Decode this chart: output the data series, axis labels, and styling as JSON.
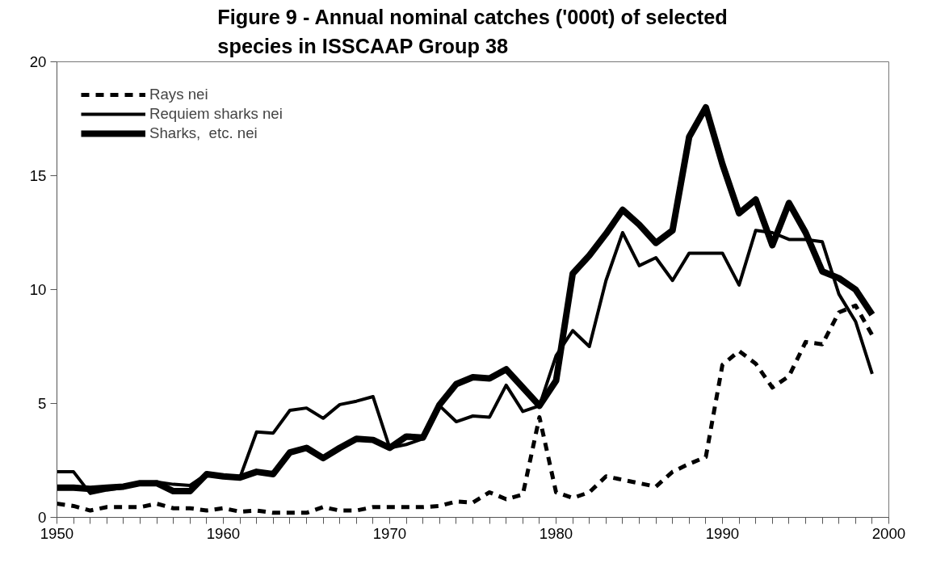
{
  "chart_data": {
    "type": "line",
    "title": "Figure 9 - Annual nominal catches ('000t) of selected species in ISSCAAP Group 38",
    "x": [
      1950,
      1951,
      1952,
      1953,
      1954,
      1955,
      1956,
      1957,
      1958,
      1959,
      1960,
      1961,
      1962,
      1963,
      1964,
      1965,
      1966,
      1967,
      1968,
      1969,
      1970,
      1971,
      1972,
      1973,
      1974,
      1975,
      1976,
      1977,
      1978,
      1979,
      1980,
      1981,
      1982,
      1983,
      1984,
      1985,
      1986,
      1987,
      1988,
      1989,
      1990,
      1991,
      1992,
      1993,
      1994,
      1995,
      1996,
      1997,
      1998,
      1999
    ],
    "series": [
      {
        "name": "Rays nei",
        "color": "#000000",
        "line_style": "dashed",
        "values": [
          0.6,
          0.5,
          0.3,
          0.45,
          0.45,
          0.45,
          0.6,
          0.4,
          0.4,
          0.3,
          0.4,
          0.25,
          0.3,
          0.2,
          0.2,
          0.2,
          0.45,
          0.3,
          0.3,
          0.45,
          0.45,
          0.45,
          0.45,
          0.5,
          0.7,
          0.65,
          1.1,
          0.8,
          1.0,
          4.4,
          1.1,
          0.85,
          1.1,
          1.8,
          1.65,
          1.5,
          1.35,
          2.0,
          2.35,
          2.65,
          6.7,
          7.3,
          6.75,
          5.7,
          6.2,
          7.7,
          7.6,
          9.0,
          9.3,
          8.0
        ]
      },
      {
        "name": "Requiem sharks nei",
        "color": "#000000",
        "line_style": "solid",
        "values": [
          2.0,
          2.0,
          1.05,
          1.2,
          1.3,
          1.5,
          1.55,
          1.45,
          1.4,
          1.9,
          1.8,
          1.75,
          3.75,
          3.7,
          4.7,
          4.8,
          4.35,
          4.95,
          5.1,
          5.3,
          3.05,
          3.2,
          3.45,
          4.9,
          4.2,
          4.45,
          4.4,
          5.8,
          4.65,
          4.9,
          7.1,
          8.2,
          7.5,
          10.4,
          12.5,
          11.05,
          11.4,
          10.4,
          11.6,
          11.6,
          11.6,
          10.2,
          12.6,
          12.5,
          12.2,
          12.2,
          12.1,
          9.8,
          8.6,
          6.3
        ]
      },
      {
        "name": "Sharks,  etc. nei",
        "color": "#000000",
        "line_style": "solid",
        "values": [
          1.3,
          1.3,
          1.25,
          1.3,
          1.35,
          1.5,
          1.5,
          1.15,
          1.15,
          1.9,
          1.8,
          1.75,
          2.0,
          1.9,
          2.85,
          3.05,
          2.6,
          3.05,
          3.45,
          3.4,
          3.05,
          3.55,
          3.5,
          4.95,
          5.85,
          6.15,
          6.1,
          6.5,
          5.7,
          4.9,
          6.0,
          10.7,
          11.5,
          12.45,
          13.5,
          12.85,
          12.05,
          12.6,
          16.7,
          18.0,
          15.5,
          13.35,
          13.95,
          11.95,
          13.8,
          12.5,
          10.8,
          10.5,
          10.0,
          8.9
        ]
      }
    ],
    "xlim": [
      1950,
      2000
    ],
    "xticks": [
      1950,
      {
        "value": 1951,
        "label": null
      },
      {
        "value": 1952,
        "label": null
      },
      {
        "value": 1953,
        "label": null
      },
      {
        "value": 1954,
        "label": null
      },
      {
        "value": 1955,
        "label": null
      },
      {
        "value": 1956,
        "label": null
      },
      {
        "value": 1957,
        "label": null
      },
      {
        "value": 1958,
        "label": null
      },
      {
        "value": 1959,
        "label": null
      },
      1960,
      {
        "value": 1961,
        "label": null
      },
      {
        "value": 1962,
        "label": null
      },
      {
        "value": 1963,
        "label": null
      },
      {
        "value": 1964,
        "label": null
      },
      {
        "value": 1965,
        "label": null
      },
      {
        "value": 1966,
        "label": null
      },
      {
        "value": 1967,
        "label": null
      },
      {
        "value": 1968,
        "label": null
      },
      {
        "value": 1969,
        "label": null
      },
      1970,
      {
        "value": 1971,
        "label": null
      },
      {
        "value": 1972,
        "label": null
      },
      {
        "value": 1973,
        "label": null
      },
      {
        "value": 1974,
        "label": null
      },
      {
        "value": 1975,
        "label": null
      },
      {
        "value": 1976,
        "label": null
      },
      {
        "value": 1977,
        "label": null
      },
      {
        "value": 1978,
        "label": null
      },
      {
        "value": 1979,
        "label": null
      },
      1980,
      {
        "value": 1981,
        "label": null
      },
      {
        "value": 1982,
        "label": null
      },
      {
        "value": 1983,
        "label": null
      },
      {
        "value": 1984,
        "label": null
      },
      {
        "value": 1985,
        "label": null
      },
      {
        "value": 1986,
        "label": null
      },
      {
        "value": 1987,
        "label": null
      },
      {
        "value": 1988,
        "label": null
      },
      {
        "value": 1989,
        "label": null
      },
      1990,
      {
        "value": 1991,
        "label": null
      },
      {
        "value": 1992,
        "label": null
      },
      {
        "value": 1993,
        "label": null
      },
      {
        "value": 1994,
        "label": null
      },
      {
        "value": 1995,
        "label": null
      },
      {
        "value": 1996,
        "label": null
      },
      {
        "value": 1997,
        "label": null
      },
      {
        "value": 1998,
        "label": null
      },
      {
        "value": 1999,
        "label": null
      },
      2000
    ],
    "ylim": [
      0,
      20
    ],
    "yticks": [
      0,
      5,
      10,
      15,
      20
    ],
    "grid": false,
    "legend": "top left",
    "marker": "none"
  }
}
